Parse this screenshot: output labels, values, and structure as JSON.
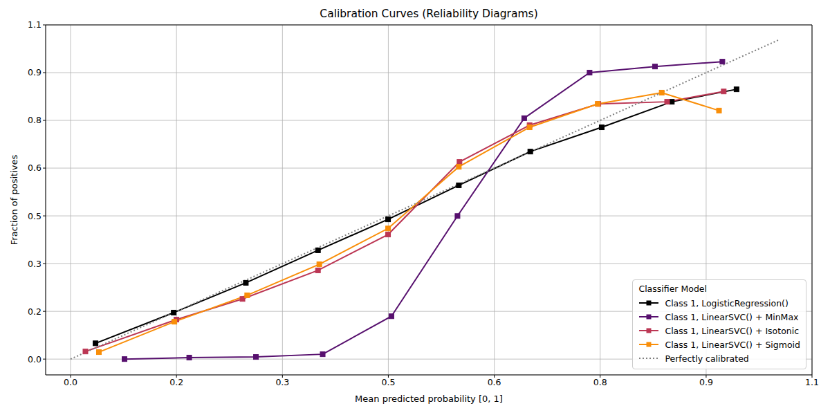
{
  "chart_data": {
    "type": "line",
    "title": "Calibration Curves (Reliability Diagrams)",
    "x_label": "Mean predicted probability [0, 1]",
    "y_label": "Fraction of positives",
    "xlim": [
      -0.037,
      1.1
    ],
    "ylim": [
      -0.052,
      1.1
    ],
    "xticks": [
      {
        "value": 0,
        "label": "0.0"
      },
      {
        "value": 0.1571,
        "label": "0.2"
      },
      {
        "value": 0.3143,
        "label": "0.3"
      },
      {
        "value": 0.4714,
        "label": "0.5"
      },
      {
        "value": 0.6286,
        "label": "0.6"
      },
      {
        "value": 0.7857,
        "label": "0.8"
      },
      {
        "value": 0.9429,
        "label": "0.9"
      },
      {
        "value": 1.1,
        "label": "1.1"
      }
    ],
    "yticks": [
      {
        "value": 0,
        "label": "0.0"
      },
      {
        "value": 0.1571,
        "label": "0.2"
      },
      {
        "value": 0.3143,
        "label": "0.3"
      },
      {
        "value": 0.4714,
        "label": "0.5"
      },
      {
        "value": 0.6286,
        "label": "0.6"
      },
      {
        "value": 0.7857,
        "label": "0.8"
      },
      {
        "value": 0.9429,
        "label": "0.9"
      },
      {
        "value": 1.1,
        "label": "1.1"
      }
    ],
    "grid": true,
    "legend": "lower right",
    "legend_title": "Classifier Model",
    "series": [
      {
        "name": "Class 1, LogisticRegression()",
        "color": "#000000",
        "marker": "square",
        "line_style": "solid",
        "x": [
          0.037,
          0.153,
          0.26,
          0.367,
          0.471,
          0.576,
          0.682,
          0.788,
          0.892,
          0.988
        ],
        "values": [
          0.052,
          0.153,
          0.251,
          0.358,
          0.46,
          0.572,
          0.683,
          0.763,
          0.847,
          0.888
        ]
      },
      {
        "name": "Class 1, LinearSVC() + MinMax",
        "color": "#57106e",
        "marker": "square",
        "line_style": "solid",
        "x": [
          0.08,
          0.176,
          0.275,
          0.374,
          0.476,
          0.574,
          0.673,
          0.77,
          0.867,
          0.967
        ],
        "values": [
          0.0,
          0.005,
          0.007,
          0.016,
          0.141,
          0.471,
          0.793,
          0.943,
          0.963,
          0.979
        ]
      },
      {
        "name": "Class 1, LinearSVC() + Isotonic",
        "color": "#bc3754",
        "marker": "square",
        "line_style": "solid",
        "x": [
          0.022,
          0.157,
          0.255,
          0.367,
          0.471,
          0.577,
          0.681,
          0.783,
          0.885,
          0.969
        ],
        "values": [
          0.025,
          0.13,
          0.198,
          0.292,
          0.41,
          0.649,
          0.77,
          0.84,
          0.847,
          0.881
        ]
      },
      {
        "name": "Class 1, LinearSVC() + Sigmoid",
        "color": "#f98e09",
        "marker": "square",
        "line_style": "solid",
        "x": [
          0.042,
          0.154,
          0.262,
          0.369,
          0.471,
          0.576,
          0.681,
          0.782,
          0.877,
          0.962
        ],
        "values": [
          0.023,
          0.123,
          0.21,
          0.312,
          0.43,
          0.633,
          0.763,
          0.84,
          0.877,
          0.818
        ]
      },
      {
        "name": "Perfectly calibrated",
        "color": "#808080",
        "marker": "none",
        "line_style": "dotted",
        "x": [
          0,
          1.05
        ],
        "values": [
          0,
          1.05
        ]
      }
    ]
  }
}
